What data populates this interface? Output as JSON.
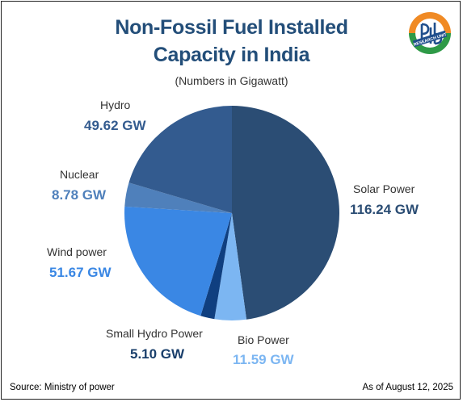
{
  "header": {
    "title_line1": "Non-Fossil Fuel Installed",
    "title_line2": "Capacity in India",
    "subtitle": "(Numbers in Gigawatt)"
  },
  "logo": {
    "text": "RESEARCH UNIT",
    "icon": "pib-logo-icon"
  },
  "footer": {
    "source": "Source: Ministry of power",
    "date": "As of August 12, 2025"
  },
  "chart_data": {
    "type": "pie",
    "title": "Non-Fossil Fuel Installed Capacity in India",
    "unit": "GW",
    "slices": [
      {
        "name": "Solar Power",
        "value": 116.24,
        "value_label": "116.24 GW",
        "color": "#2b4d74"
      },
      {
        "name": "Bio Power",
        "value": 11.59,
        "value_label": "11.59 GW",
        "color": "#7cb6f2"
      },
      {
        "name": "Small Hydro Power",
        "value": 5.1,
        "value_label": "5.10 GW",
        "color": "#0f3f80"
      },
      {
        "name": "Wind power",
        "value": 51.67,
        "value_label": "51.67 GW",
        "color": "#3a87e4"
      },
      {
        "name": "Nuclear",
        "value": 8.78,
        "value_label": "8.78 GW",
        "color": "#4f80bb"
      },
      {
        "name": "Hydro",
        "value": 49.62,
        "value_label": "49.62 GW",
        "color": "#335b8f"
      }
    ],
    "label_colors": {
      "Solar Power": "#2b4d74",
      "Bio Power": "#7cb6f2",
      "Small Hydro Power": "#1a3f6b",
      "Wind power": "#3a87e4",
      "Nuclear": "#4f80bb",
      "Hydro": "#335b8f"
    }
  }
}
